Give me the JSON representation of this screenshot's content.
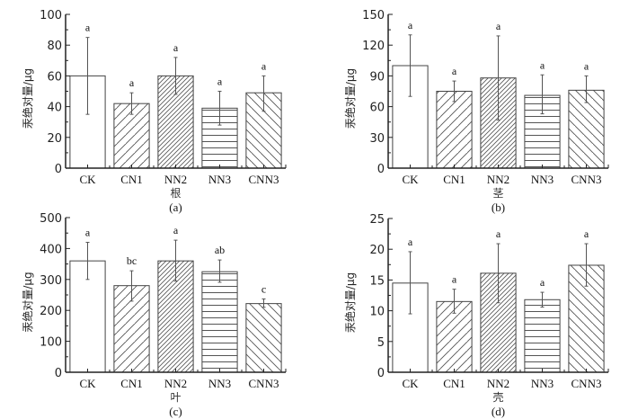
{
  "chart_data": [
    {
      "type": "bar",
      "panel": "(a)",
      "xlabel": "根",
      "ylabel": "汞绝对量/μg",
      "ylim": [
        0,
        100
      ],
      "yticks": [
        0,
        20,
        40,
        60,
        80,
        100
      ],
      "categories": [
        "CK",
        "CN1",
        "NN2",
        "NN3",
        "CNN3"
      ],
      "values": [
        60,
        42,
        60,
        39,
        49
      ],
      "error_low": [
        35,
        35,
        48,
        28,
        37
      ],
      "error_high": [
        85,
        49,
        72,
        50,
        60
      ],
      "significance": [
        "a",
        "a",
        "a",
        "a",
        "a"
      ]
    },
    {
      "type": "bar",
      "panel": "(b)",
      "xlabel": "茎",
      "ylabel": "汞绝对量/μg",
      "ylim": [
        0,
        150
      ],
      "yticks": [
        0,
        30,
        60,
        90,
        120,
        150
      ],
      "categories": [
        "CK",
        "CN1",
        "NN2",
        "NN3",
        "CNN3"
      ],
      "values": [
        100,
        75,
        88,
        71,
        76
      ],
      "error_low": [
        70,
        65,
        47,
        53,
        64
      ],
      "error_high": [
        130,
        85,
        129,
        91,
        90
      ],
      "significance": [
        "a",
        "a",
        "a",
        "a",
        "a"
      ]
    },
    {
      "type": "bar",
      "panel": "(c)",
      "xlabel": "叶",
      "ylabel": "汞绝对量/μg",
      "ylim": [
        0,
        500
      ],
      "yticks": [
        0,
        100,
        200,
        300,
        400,
        500
      ],
      "categories": [
        "CK",
        "CN1",
        "NN2",
        "NN3",
        "CNN3"
      ],
      "values": [
        360,
        280,
        360,
        325,
        222
      ],
      "error_low": [
        300,
        230,
        295,
        291,
        210
      ],
      "error_high": [
        420,
        328,
        427,
        363,
        237
      ],
      "significance": [
        "a",
        "bc",
        "a",
        "ab",
        "c"
      ]
    },
    {
      "type": "bar",
      "panel": "(d)",
      "xlabel": "壳",
      "ylabel": "汞绝对量/μg",
      "ylim": [
        0,
        25
      ],
      "yticks": [
        0,
        5,
        10,
        15,
        20,
        25
      ],
      "categories": [
        "CK",
        "CN1",
        "NN2",
        "NN3",
        "CNN3"
      ],
      "values": [
        14.5,
        11.5,
        16.1,
        11.8,
        17.4
      ],
      "error_low": [
        9.5,
        9.6,
        11.3,
        10.6,
        14.0
      ],
      "error_high": [
        19.6,
        13.5,
        20.9,
        13.0,
        20.9
      ],
      "significance": [
        "a",
        "a",
        "a",
        "a",
        "a"
      ]
    }
  ],
  "patterns": [
    "none",
    "diag-wide-up",
    "diag-dense-up",
    "horizontal",
    "diag-wide-down"
  ],
  "colors": {
    "axis": "#222222",
    "bar_edge": "#444444",
    "error": "#555555",
    "hatch": "#555555"
  }
}
